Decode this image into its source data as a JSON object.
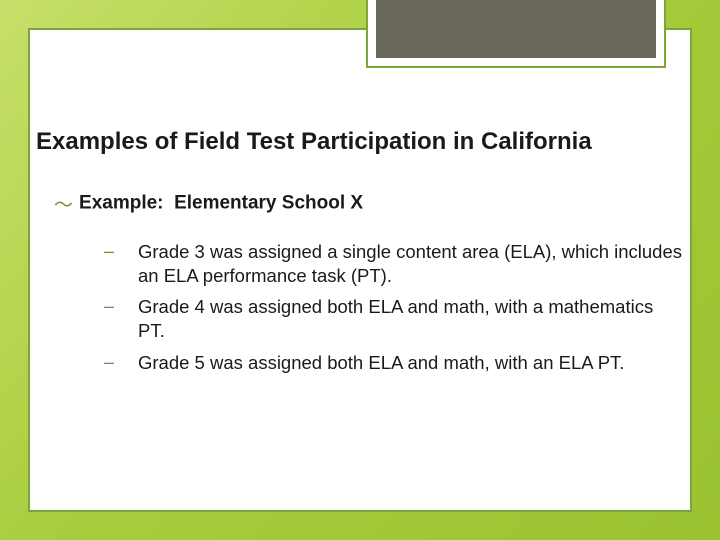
{
  "colors": {
    "bg_gradient_start": "#c7e06a",
    "bg_gradient_end": "#9bc230",
    "panel_bg": "#ffffff",
    "border": "#7fa43a",
    "header_box_fill": "#6a685a",
    "text": "#1a1a1a",
    "bullet_accent": "#6f933a"
  },
  "title": "Examples of Field Test Participation in California",
  "main": {
    "lead": "Example:",
    "rest": "Elementary School X"
  },
  "sub_items": [
    "Grade 3 was assigned a single content area (ELA), which includes an ELA performance task (PT).",
    "Grade 4 was assigned both ELA and math, with a mathematics PT.",
    "Grade 5 was assigned both ELA and math, with an ELA PT."
  ]
}
